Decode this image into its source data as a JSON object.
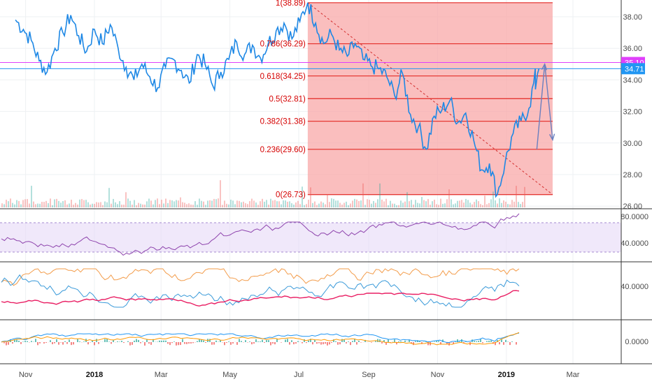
{
  "chart_data": {
    "type": "line",
    "price_axis_ticks": [
      "38.00",
      "36.00",
      "34.00",
      "32.00",
      "30.00",
      "28.00",
      "26.00"
    ],
    "price_axis_values": [
      38,
      36,
      34,
      32,
      30,
      28,
      26
    ],
    "price_range": [
      25.75,
      39.0
    ],
    "time_labels": [
      "Nov",
      "2018",
      "Mar",
      "May",
      "Jul",
      "Sep",
      "Nov",
      "2019",
      "Mar"
    ],
    "time_label_bold": [
      false,
      true,
      false,
      false,
      false,
      false,
      false,
      true,
      false
    ],
    "price_tags": [
      {
        "text": "35.10",
        "value": 35.1,
        "color": "#e040fb"
      },
      {
        "text": "34.71",
        "value": 34.71,
        "color": "#2196f3"
      }
    ],
    "fibonacci_levels": [
      {
        "ratio": 1,
        "price": 38.89,
        "label": "1(38.89)"
      },
      {
        "ratio": 0.786,
        "price": 36.29,
        "label": "0.786(36.29)"
      },
      {
        "ratio": 0.618,
        "price": 34.25,
        "label": "0.618(34.25)"
      },
      {
        "ratio": 0.5,
        "price": 32.81,
        "label": "0.5(32.81)"
      },
      {
        "ratio": 0.382,
        "price": 31.38,
        "label": "0.382(31.38)"
      },
      {
        "ratio": 0.236,
        "price": 29.6,
        "label": "0.236(29.60)"
      },
      {
        "ratio": 0,
        "price": 26.73,
        "label": "0(26.73)"
      }
    ],
    "price_series": [
      [
        "2017-10-23",
        37.8
      ],
      [
        "2017-10-30",
        37.2
      ],
      [
        "2017-11-06",
        36.5
      ],
      [
        "2017-11-13",
        35.2
      ],
      [
        "2017-11-20",
        34.5
      ],
      [
        "2017-11-27",
        36.0
      ],
      [
        "2017-12-04",
        37.0
      ],
      [
        "2017-12-11",
        38.1
      ],
      [
        "2017-12-18",
        36.8
      ],
      [
        "2017-12-25",
        35.8
      ],
      [
        "2018-01-01",
        37.2
      ],
      [
        "2018-01-08",
        36.3
      ],
      [
        "2018-01-15",
        37.5
      ],
      [
        "2018-01-22",
        36.0
      ],
      [
        "2018-01-29",
        34.8
      ],
      [
        "2018-02-05",
        34.0
      ],
      [
        "2018-02-12",
        35.0
      ],
      [
        "2018-02-19",
        34.2
      ],
      [
        "2018-02-26",
        33.5
      ],
      [
        "2018-03-05",
        34.8
      ],
      [
        "2018-03-12",
        35.3
      ],
      [
        "2018-03-19",
        34.6
      ],
      [
        "2018-03-26",
        33.8
      ],
      [
        "2018-04-02",
        35.6
      ],
      [
        "2018-04-09",
        35.0
      ],
      [
        "2018-04-16",
        33.6
      ],
      [
        "2018-04-23",
        34.5
      ],
      [
        "2018-04-30",
        35.3
      ],
      [
        "2018-05-07",
        36.4
      ],
      [
        "2018-05-14",
        35.6
      ],
      [
        "2018-05-21",
        36.2
      ],
      [
        "2018-05-28",
        35.4
      ],
      [
        "2018-06-04",
        36.3
      ],
      [
        "2018-06-11",
        37.1
      ],
      [
        "2018-06-18",
        37.6
      ],
      [
        "2018-06-25",
        36.6
      ],
      [
        "2018-07-02",
        37.7
      ],
      [
        "2018-07-09",
        38.89
      ],
      [
        "2018-07-16",
        37.6
      ],
      [
        "2018-07-23",
        36.3
      ],
      [
        "2018-07-30",
        36.9
      ],
      [
        "2018-08-06",
        35.9
      ],
      [
        "2018-08-13",
        35.5
      ],
      [
        "2018-08-20",
        36.3
      ],
      [
        "2018-08-27",
        35.3
      ],
      [
        "2018-09-03",
        34.9
      ],
      [
        "2018-09-10",
        34.7
      ],
      [
        "2018-09-17",
        34.2
      ],
      [
        "2018-09-24",
        33.0
      ],
      [
        "2018-10-01",
        34.4
      ],
      [
        "2018-10-08",
        31.8
      ],
      [
        "2018-10-15",
        31.0
      ],
      [
        "2018-10-22",
        29.6
      ],
      [
        "2018-10-29",
        31.7
      ],
      [
        "2018-11-05",
        32.1
      ],
      [
        "2018-11-12",
        32.7
      ],
      [
        "2018-11-19",
        31.3
      ],
      [
        "2018-11-26",
        31.9
      ],
      [
        "2018-12-03",
        30.2
      ],
      [
        "2018-12-10",
        28.3
      ],
      [
        "2018-12-17",
        28.7
      ],
      [
        "2018-12-24",
        26.73
      ],
      [
        "2018-12-31",
        28.8
      ],
      [
        "2019-01-07",
        30.6
      ],
      [
        "2019-01-14",
        31.4
      ],
      [
        "2019-01-21",
        32.2
      ],
      [
        "2019-01-28",
        34.71
      ]
    ],
    "annotation_arrows": [
      {
        "from": [
          "2019-01-28",
          29.6
        ],
        "to": [
          "2019-02-04",
          35.0
        ]
      },
      {
        "from": [
          "2019-02-04",
          35.0
        ],
        "to": [
          "2019-02-11",
          30.2
        ]
      }
    ],
    "trend_line": {
      "from": [
        "2018-07-09",
        38.89
      ],
      "to": [
        "2019-02-11",
        26.73
      ]
    },
    "panels": [
      {
        "name": "rsi",
        "ticks": [
          "80.0000",
          "40.0000"
        ]
      },
      {
        "name": "dmi",
        "ticks": [
          "40.0000"
        ]
      },
      {
        "name": "macd",
        "ticks": [
          "0.0000"
        ]
      }
    ]
  }
}
